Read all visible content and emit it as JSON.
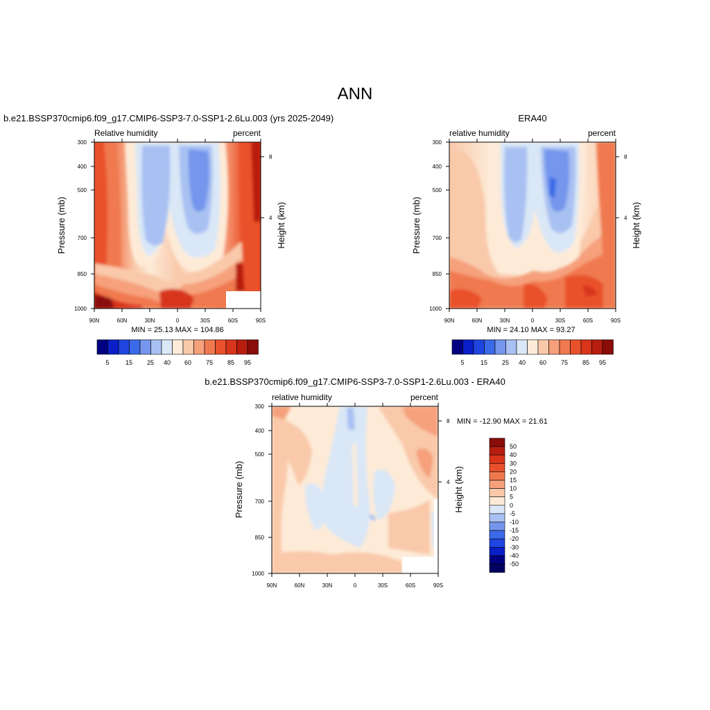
{
  "page_title": "ANN",
  "chart_data": [
    {
      "type": "heatmap",
      "panel": "model",
      "title": "b.e21.BSSP370cmip6.f09_g17.CMIP6-SSP3-7.0-SSP1-2.6Lu.003 (yrs 2025-2049)",
      "left_label": "Relative humidity",
      "right_label": "percent",
      "ylabel": "Pressure (mb)",
      "ylabel_right": "Height (km)",
      "x_ticks": [
        "90N",
        "60N",
        "30N",
        "0",
        "30S",
        "60S",
        "90S"
      ],
      "y_ticks": [
        "300",
        "400",
        "500",
        "700",
        "850",
        "1000"
      ],
      "y_ticks_right": [
        "8",
        "4"
      ],
      "stats": "MIN =  25.13  MAX = 104.86",
      "levels": [
        "5",
        "15",
        "25",
        "40",
        "60",
        "75",
        "85",
        "95"
      ],
      "colors": [
        "#000080",
        "#0a1fc7",
        "#1f45e0",
        "#3b6ae8",
        "#7596ec",
        "#a9c1f2",
        "#d9e7f7",
        "#fdebd8",
        "#f9c9aa",
        "#f6a07c",
        "#f07950",
        "#e9512c",
        "#d8351a",
        "#b81e10",
        "#8a0d09"
      ],
      "ylim": [
        1000,
        300
      ],
      "xlim": [
        "90N",
        "90S"
      ],
      "value_range": [
        25.13,
        104.86
      ]
    },
    {
      "type": "heatmap",
      "panel": "obs",
      "title": "ERA40",
      "left_label": "relative humidity",
      "right_label": "percent",
      "ylabel": "Pressure (mb)",
      "ylabel_right": "Height (km)",
      "x_ticks": [
        "90N",
        "60N",
        "30N",
        "0",
        "30S",
        "60S",
        "90S"
      ],
      "y_ticks": [
        "300",
        "400",
        "500",
        "700",
        "850",
        "1000"
      ],
      "y_ticks_right": [
        "8",
        "4"
      ],
      "stats": "MIN =  24.10  MAX =  93.27",
      "levels": [
        "5",
        "15",
        "25",
        "40",
        "60",
        "75",
        "85",
        "95"
      ],
      "ylim": [
        1000,
        300
      ],
      "xlim": [
        "90N",
        "90S"
      ],
      "value_range": [
        24.1,
        93.27
      ]
    },
    {
      "type": "heatmap",
      "panel": "difference",
      "title": "b.e21.BSSP370cmip6.f09_g17.CMIP6-SSP3-7.0-SSP1-2.6Lu.003 - ERA40",
      "left_label": "relative humidity",
      "right_label": "percent",
      "ylabel": "Pressure (mb)",
      "ylabel_right": "Height (km)",
      "x_ticks": [
        "90N",
        "60N",
        "30N",
        "0",
        "30S",
        "60S",
        "90S"
      ],
      "y_ticks": [
        "300",
        "400",
        "500",
        "700",
        "850",
        "1000"
      ],
      "y_ticks_right": [
        "8",
        "4"
      ],
      "stats": "MIN = -12.90  MAX =  21.61",
      "levels": [
        "50",
        "40",
        "30",
        "20",
        "15",
        "10",
        "5",
        "0",
        "-5",
        "-10",
        "-15",
        "-20",
        "-30",
        "-40",
        "-50"
      ],
      "colors": [
        "#8a0d09",
        "#b81e10",
        "#d8351a",
        "#e9512c",
        "#f07950",
        "#f6a07c",
        "#f9c9aa",
        "#fdebd8",
        "#d9e7f7",
        "#a9c1f2",
        "#7596ec",
        "#3b6ae8",
        "#1f45e0",
        "#0a1fc7",
        "#000080",
        "#000060"
      ],
      "ylim": [
        1000,
        300
      ],
      "xlim": [
        "90N",
        "90S"
      ],
      "value_range": [
        -12.9,
        21.61
      ]
    }
  ]
}
